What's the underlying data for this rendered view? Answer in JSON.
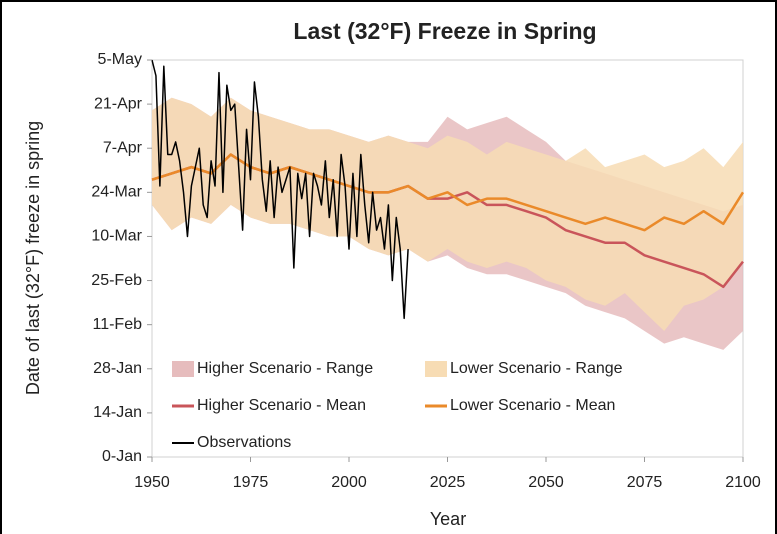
{
  "chart_data": {
    "type": "line",
    "title": "Last (32°F) Freeze in Spring",
    "x_label": "Year",
    "y_label": "Date of last (32°F) freeze in spring",
    "xlim": [
      1950,
      2100
    ],
    "xticks": [
      1950,
      1975,
      2000,
      2025,
      2050,
      2075,
      2100
    ],
    "ylim": [
      0,
      126
    ],
    "yticks": [
      {
        "value": 0,
        "label": "0-Jan"
      },
      {
        "value": 14,
        "label": "14-Jan"
      },
      {
        "value": 28,
        "label": "28-Jan"
      },
      {
        "value": 42,
        "label": "11-Feb"
      },
      {
        "value": 56,
        "label": "25-Feb"
      },
      {
        "value": 70,
        "label": "10-Mar"
      },
      {
        "value": 84,
        "label": "24-Mar"
      },
      {
        "value": 98,
        "label": "7-Apr"
      },
      {
        "value": 112,
        "label": "21-Apr"
      },
      {
        "value": 126,
        "label": "5-May"
      }
    ],
    "x": [
      1950,
      1955,
      1960,
      1965,
      1970,
      1975,
      1980,
      1985,
      1990,
      1995,
      2000,
      2005,
      2010,
      2015,
      2020,
      2025,
      2030,
      2035,
      2040,
      2045,
      2050,
      2055,
      2060,
      2065,
      2070,
      2075,
      2080,
      2085,
      2090,
      2095,
      2100
    ],
    "series": [
      {
        "name": "Higher Scenario - Range",
        "type": "band",
        "color": "#e6bcbd",
        "low": [
          80,
          72,
          76,
          74,
          80,
          76,
          74,
          74,
          72,
          70,
          70,
          66,
          64,
          66,
          62,
          64,
          60,
          58,
          58,
          56,
          54,
          52,
          48,
          46,
          44,
          40,
          36,
          38,
          36,
          34,
          40
        ],
        "high": [
          110,
          114,
          112,
          108,
          114,
          110,
          108,
          106,
          104,
          104,
          102,
          100,
          102,
          100,
          100,
          108,
          104,
          106,
          108,
          104,
          100,
          94,
          92,
          90,
          88,
          86,
          84,
          82,
          80,
          78,
          80
        ]
      },
      {
        "name": "Lower Scenario - Range",
        "type": "band",
        "color": "#f7dcb4",
        "low": [
          80,
          72,
          76,
          74,
          80,
          76,
          74,
          74,
          72,
          70,
          70,
          66,
          64,
          66,
          62,
          66,
          62,
          60,
          62,
          60,
          56,
          54,
          50,
          48,
          52,
          46,
          40,
          48,
          50,
          54,
          62
        ],
        "high": [
          110,
          114,
          112,
          108,
          114,
          110,
          108,
          106,
          104,
          104,
          102,
          100,
          102,
          100,
          98,
          102,
          100,
          96,
          100,
          98,
          96,
          94,
          98,
          92,
          94,
          96,
          92,
          94,
          98,
          92,
          100
        ]
      },
      {
        "name": "Higher Scenario - Mean",
        "type": "line",
        "color": "#c9555a",
        "values": [
          88,
          90,
          92,
          90,
          96,
          92,
          90,
          92,
          90,
          88,
          86,
          84,
          84,
          86,
          82,
          82,
          84,
          80,
          80,
          78,
          76,
          72,
          70,
          68,
          68,
          64,
          62,
          60,
          58,
          54,
          62
        ]
      },
      {
        "name": "Lower Scenario - Mean",
        "type": "line",
        "color": "#ea8a2a",
        "values": [
          88,
          90,
          92,
          90,
          96,
          92,
          90,
          92,
          90,
          88,
          86,
          84,
          84,
          86,
          82,
          84,
          80,
          82,
          82,
          80,
          78,
          76,
          74,
          76,
          74,
          72,
          76,
          74,
          78,
          74,
          84
        ]
      },
      {
        "name": "Observations",
        "type": "line",
        "color": "#000000",
        "x": [
          1950,
          1951,
          1952,
          1953,
          1954,
          1955,
          1956,
          1957,
          1958,
          1959,
          1960,
          1961,
          1962,
          1963,
          1964,
          1965,
          1966,
          1967,
          1968,
          1969,
          1970,
          1971,
          1972,
          1973,
          1974,
          1975,
          1976,
          1977,
          1978,
          1979,
          1980,
          1981,
          1982,
          1983,
          1984,
          1985,
          1986,
          1987,
          1988,
          1989,
          1990,
          1991,
          1992,
          1993,
          1994,
          1995,
          1996,
          1997,
          1998,
          1999,
          2000,
          2001,
          2002,
          2003,
          2004,
          2005,
          2006,
          2007,
          2008,
          2009,
          2010,
          2011,
          2012,
          2013,
          2014,
          2015
        ],
        "values": [
          126,
          121,
          86,
          124,
          96,
          96,
          100,
          94,
          84,
          70,
          86,
          92,
          98,
          80,
          76,
          94,
          86,
          122,
          84,
          118,
          110,
          112,
          92,
          72,
          104,
          88,
          119,
          108,
          88,
          78,
          94,
          76,
          92,
          84,
          88,
          92,
          60,
          90,
          82,
          90,
          70,
          90,
          86,
          80,
          94,
          76,
          88,
          70,
          96,
          86,
          66,
          90,
          70,
          96,
          80,
          68,
          84,
          72,
          76,
          66,
          80,
          56,
          76,
          66,
          44,
          66
        ]
      }
    ]
  }
}
